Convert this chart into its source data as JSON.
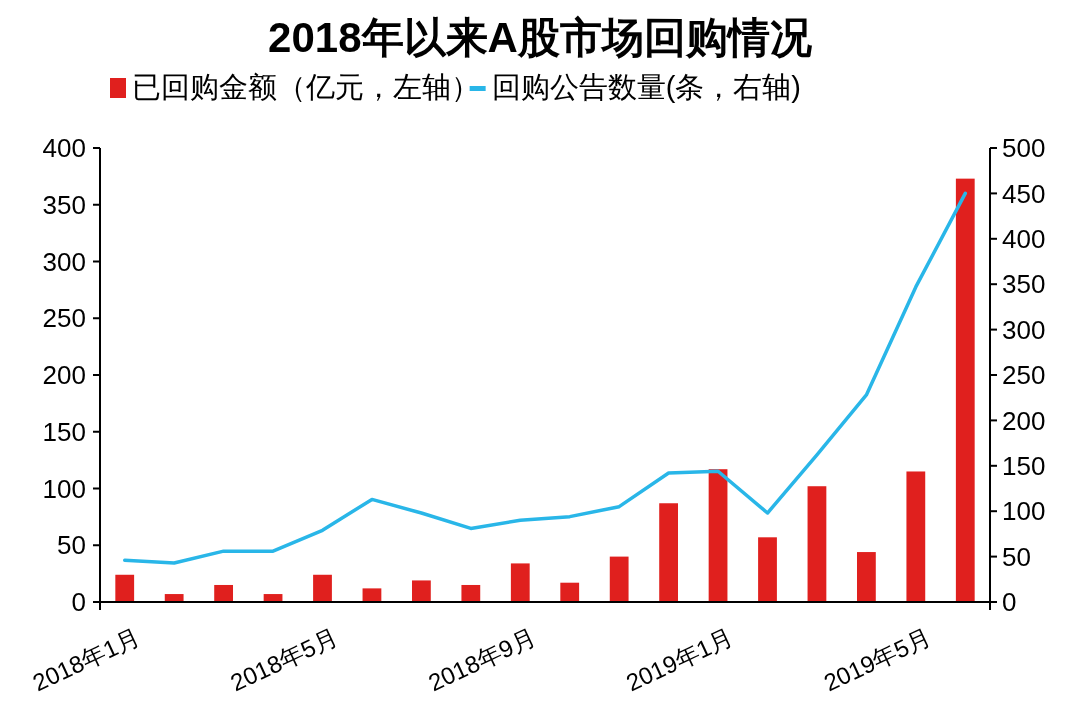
{
  "chart_data": {
    "type": "bar",
    "title": "2018年以来A股市场回购情况",
    "categories": [
      "2018年1月",
      null,
      null,
      null,
      "2018年5月",
      null,
      null,
      null,
      "2018年9月",
      null,
      null,
      null,
      "2019年1月",
      null,
      null,
      null,
      "2019年5月",
      null
    ],
    "series": [
      {
        "name": "已回购金额（亿元，左轴）",
        "color": "#e0201e",
        "values": [
          24,
          7,
          15,
          7,
          24,
          12,
          19,
          15,
          34,
          17,
          40,
          87,
          117,
          57,
          102,
          44,
          115,
          373
        ]
      },
      {
        "name": "回购公告数量(条，右轴)",
        "type": "line",
        "axis": "y2",
        "color": "#29b6e8",
        "values": [
          46,
          43,
          56,
          56,
          79,
          113,
          98,
          81,
          90,
          94,
          105,
          142,
          144,
          98,
          162,
          228,
          347,
          450
        ]
      }
    ],
    "ylim": [
      0,
      400
    ],
    "yticks": [
      0,
      50,
      100,
      150,
      200,
      250,
      300,
      350,
      400
    ],
    "y2lim": [
      0,
      500
    ],
    "y2ticks": [
      0,
      50,
      100,
      150,
      200,
      250,
      300,
      350,
      400,
      450,
      500
    ],
    "legend": "top",
    "grid": false,
    "marker": "none",
    "line_style": "solid"
  }
}
